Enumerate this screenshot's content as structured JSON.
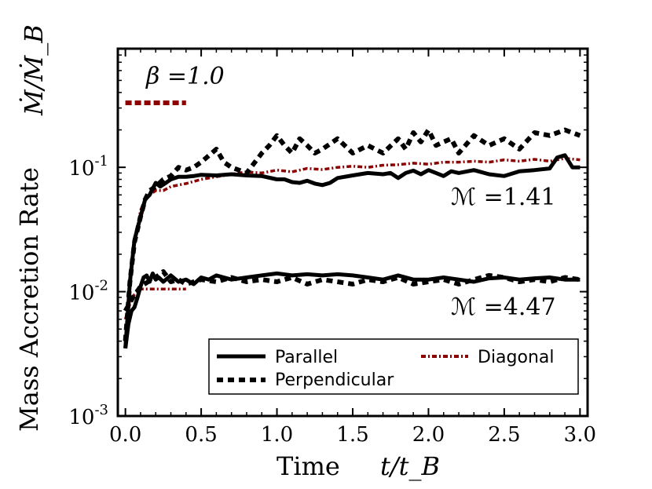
{
  "chart_data": {
    "type": "line",
    "ylabel": "Mass Accretion Rate",
    "ylabel_ratio": "Ṁ/Ṁ_B",
    "xlabel_word": "Time",
    "xlabel_var": "t/t_B",
    "xlim": [
      -0.05,
      3.05
    ],
    "ylim": [
      0.001,
      0.9
    ],
    "yscale": "log",
    "xticks": [
      0.0,
      0.5,
      1.0,
      1.5,
      2.0,
      2.5,
      3.0
    ],
    "xtick_labels": [
      "0.0",
      "0.5",
      "1.0",
      "1.5",
      "2.0",
      "2.5",
      "3.0"
    ],
    "yticks": [
      {
        "value": 0.1,
        "base": "10",
        "exp": "-1"
      },
      {
        "value": 0.01,
        "base": "10",
        "exp": "-2"
      },
      {
        "value": 0.001,
        "base": "10",
        "exp": "-3"
      }
    ],
    "annotations": {
      "beta": "β =1.0",
      "mach_high": "ℳ =1.41",
      "mach_low": "ℳ =4.47"
    },
    "legend": {
      "position": "bottom-right",
      "entries": [
        {
          "key": "parallel",
          "label": "Parallel"
        },
        {
          "key": "perpendicular",
          "label": "Perpendicular"
        },
        {
          "key": "diagonal",
          "label": "Diagonal"
        }
      ]
    },
    "colors": {
      "parallel": "#000000",
      "perpendicular": "#000000",
      "diagonal": "#8b0000"
    },
    "series": [
      {
        "name": "Parallel",
        "group": "M=1.41",
        "style": "parallel",
        "x": [
          0.0,
          0.03,
          0.06,
          0.1,
          0.13,
          0.16,
          0.2,
          0.23,
          0.26,
          0.3,
          0.35,
          0.4,
          0.45,
          0.5,
          0.6,
          0.7,
          0.8,
          0.9,
          1.0,
          1.05,
          1.1,
          1.15,
          1.2,
          1.25,
          1.3,
          1.35,
          1.4,
          1.5,
          1.6,
          1.7,
          1.75,
          1.8,
          1.85,
          1.9,
          1.95,
          2.0,
          2.05,
          2.1,
          2.15,
          2.2,
          2.3,
          2.4,
          2.5,
          2.6,
          2.7,
          2.8,
          2.85,
          2.9,
          2.95,
          3.0
        ],
        "y": [
          0.0035,
          0.012,
          0.026,
          0.04,
          0.055,
          0.06,
          0.075,
          0.07,
          0.074,
          0.08,
          0.084,
          0.084,
          0.085,
          0.087,
          0.086,
          0.088,
          0.086,
          0.085,
          0.08,
          0.08,
          0.076,
          0.075,
          0.078,
          0.074,
          0.072,
          0.075,
          0.082,
          0.086,
          0.09,
          0.088,
          0.09,
          0.082,
          0.09,
          0.094,
          0.088,
          0.095,
          0.09,
          0.085,
          0.093,
          0.09,
          0.095,
          0.088,
          0.085,
          0.093,
          0.095,
          0.098,
          0.12,
          0.125,
          0.1,
          0.1
        ]
      },
      {
        "name": "Perpendicular",
        "group": "M=1.41",
        "style": "perpendicular",
        "x": [
          0.0,
          0.03,
          0.06,
          0.1,
          0.13,
          0.16,
          0.2,
          0.25,
          0.3,
          0.35,
          0.4,
          0.45,
          0.5,
          0.6,
          0.65,
          0.7,
          0.8,
          0.9,
          0.95,
          1.0,
          1.05,
          1.1,
          1.15,
          1.2,
          1.25,
          1.3,
          1.4,
          1.5,
          1.6,
          1.7,
          1.8,
          1.85,
          1.9,
          1.95,
          2.0,
          2.05,
          2.1,
          2.15,
          2.2,
          2.3,
          2.4,
          2.5,
          2.6,
          2.7,
          2.8,
          2.9,
          3.0
        ],
        "y": [
          0.004,
          0.012,
          0.025,
          0.04,
          0.055,
          0.065,
          0.07,
          0.08,
          0.085,
          0.1,
          0.095,
          0.1,
          0.11,
          0.14,
          0.11,
          0.1,
          0.09,
          0.13,
          0.15,
          0.18,
          0.15,
          0.13,
          0.17,
          0.15,
          0.13,
          0.14,
          0.17,
          0.13,
          0.15,
          0.13,
          0.17,
          0.14,
          0.19,
          0.16,
          0.2,
          0.15,
          0.16,
          0.17,
          0.13,
          0.18,
          0.15,
          0.17,
          0.14,
          0.19,
          0.18,
          0.2,
          0.18
        ]
      },
      {
        "name": "Diagonal",
        "group": "M=1.41",
        "style": "diagonal",
        "x": [
          0.0,
          0.03,
          0.06,
          0.1,
          0.13,
          0.16,
          0.2,
          0.25,
          0.3,
          0.4,
          0.5,
          0.6,
          0.7,
          0.8,
          0.9,
          1.0,
          1.1,
          1.2,
          1.3,
          1.4,
          1.5,
          1.6,
          1.7,
          1.8,
          1.9,
          2.0,
          2.1,
          2.2,
          2.3,
          2.4,
          2.5,
          2.6,
          2.7,
          2.8,
          2.9,
          3.0
        ],
        "y": [
          0.004,
          0.011,
          0.025,
          0.045,
          0.055,
          0.06,
          0.065,
          0.065,
          0.07,
          0.074,
          0.08,
          0.084,
          0.088,
          0.092,
          0.09,
          0.095,
          0.092,
          0.098,
          0.096,
          0.1,
          0.102,
          0.1,
          0.104,
          0.105,
          0.108,
          0.106,
          0.11,
          0.11,
          0.112,
          0.11,
          0.115,
          0.112,
          0.116,
          0.112,
          0.118,
          0.115
        ]
      },
      {
        "name": "Parallel",
        "group": "M=4.47",
        "style": "parallel",
        "x": [
          0.0,
          0.02,
          0.04,
          0.06,
          0.08,
          0.1,
          0.12,
          0.14,
          0.16,
          0.18,
          0.2,
          0.22,
          0.25,
          0.3,
          0.35,
          0.4,
          0.45,
          0.5,
          0.55,
          0.6,
          0.65,
          0.7,
          0.8,
          0.9,
          1.0,
          1.1,
          1.2,
          1.3,
          1.4,
          1.5,
          1.6,
          1.7,
          1.8,
          1.9,
          2.0,
          2.1,
          2.2,
          2.3,
          2.4,
          2.5,
          2.6,
          2.7,
          2.8,
          2.9,
          3.0
        ],
        "y": [
          0.0035,
          0.0055,
          0.007,
          0.0075,
          0.009,
          0.011,
          0.013,
          0.0135,
          0.012,
          0.014,
          0.0125,
          0.013,
          0.012,
          0.0135,
          0.012,
          0.0125,
          0.0115,
          0.013,
          0.0125,
          0.0135,
          0.013,
          0.0125,
          0.013,
          0.0135,
          0.014,
          0.0135,
          0.0138,
          0.0135,
          0.0138,
          0.0135,
          0.013,
          0.0125,
          0.0135,
          0.0125,
          0.0125,
          0.013,
          0.0125,
          0.012,
          0.0128,
          0.013,
          0.0125,
          0.0128,
          0.013,
          0.0125,
          0.0125
        ]
      },
      {
        "name": "Perpendicular",
        "group": "M=4.47",
        "style": "perpendicular",
        "x": [
          0.0,
          0.05,
          0.1,
          0.15,
          0.2,
          0.25,
          0.3,
          0.35,
          0.4,
          0.5,
          0.6,
          0.7,
          0.8,
          0.9,
          1.0,
          1.1,
          1.2,
          1.3,
          1.4,
          1.5,
          1.6,
          1.7,
          1.8,
          1.9,
          2.0,
          2.1,
          2.2,
          2.3,
          2.4,
          2.5,
          2.6,
          2.7,
          2.8,
          2.9,
          3.0
        ],
        "y": [
          0.007,
          0.009,
          0.011,
          0.012,
          0.013,
          0.0145,
          0.012,
          0.0125,
          0.0115,
          0.0125,
          0.012,
          0.013,
          0.012,
          0.0125,
          0.012,
          0.013,
          0.0115,
          0.0125,
          0.012,
          0.0115,
          0.0125,
          0.012,
          0.013,
          0.0115,
          0.012,
          0.0125,
          0.0115,
          0.0125,
          0.0135,
          0.013,
          0.012,
          0.0125,
          0.012,
          0.013,
          0.0125
        ]
      },
      {
        "name": "Diagonal",
        "group": "M=4.47",
        "style": "diagonal",
        "x": [
          0.0,
          0.03,
          0.06,
          0.1,
          0.15,
          0.2,
          0.25,
          0.3,
          0.35,
          0.4
        ],
        "y": [
          0.006,
          0.008,
          0.0095,
          0.0105,
          0.0105,
          0.0105,
          0.0105,
          0.0105,
          0.0105,
          0.0105
        ]
      },
      {
        "name": "Diagonal",
        "group": "beta-marker",
        "style": "diagonal-bold",
        "x": [
          0.0,
          0.4
        ],
        "y": [
          0.33,
          0.33
        ]
      }
    ]
  }
}
